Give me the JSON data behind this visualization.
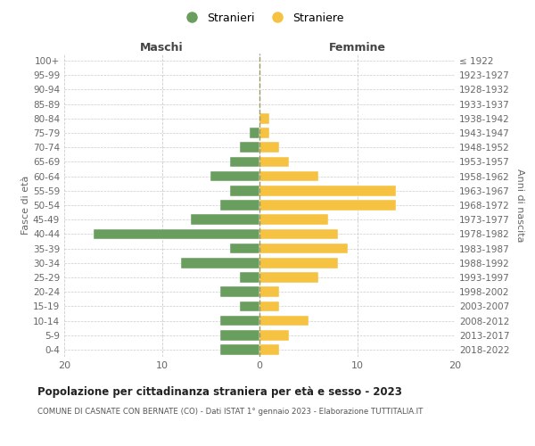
{
  "age_groups": [
    "0-4",
    "5-9",
    "10-14",
    "15-19",
    "20-24",
    "25-29",
    "30-34",
    "35-39",
    "40-44",
    "45-49",
    "50-54",
    "55-59",
    "60-64",
    "65-69",
    "70-74",
    "75-79",
    "80-84",
    "85-89",
    "90-94",
    "95-99",
    "100+"
  ],
  "birth_years": [
    "2018-2022",
    "2013-2017",
    "2008-2012",
    "2003-2007",
    "1998-2002",
    "1993-1997",
    "1988-1992",
    "1983-1987",
    "1978-1982",
    "1973-1977",
    "1968-1972",
    "1963-1967",
    "1958-1962",
    "1953-1957",
    "1948-1952",
    "1943-1947",
    "1938-1942",
    "1933-1937",
    "1928-1932",
    "1923-1927",
    "≤ 1922"
  ],
  "maschi": [
    4,
    4,
    4,
    2,
    4,
    2,
    8,
    3,
    17,
    7,
    4,
    3,
    5,
    3,
    2,
    1,
    0,
    0,
    0,
    0,
    0
  ],
  "femmine": [
    2,
    3,
    5,
    2,
    2,
    6,
    8,
    9,
    8,
    7,
    14,
    14,
    6,
    3,
    2,
    1,
    1,
    0,
    0,
    0,
    0
  ],
  "color_maschi": "#6a9e5e",
  "color_femmine": "#f5c242",
  "title": "Popolazione per cittadinanza straniera per età e sesso - 2023",
  "subtitle": "COMUNE DI CASNATE CON BERNATE (CO) - Dati ISTAT 1° gennaio 2023 - Elaborazione TUTTITALIA.IT",
  "xlabel_left": "Maschi",
  "xlabel_right": "Femmine",
  "ylabel_left": "Fasce di età",
  "ylabel_right": "Anni di nascita",
  "legend_maschi": "Stranieri",
  "legend_femmine": "Straniere",
  "xlim": 20,
  "background_color": "#ffffff",
  "grid_color": "#cccccc",
  "dashed_line_color": "#999966"
}
